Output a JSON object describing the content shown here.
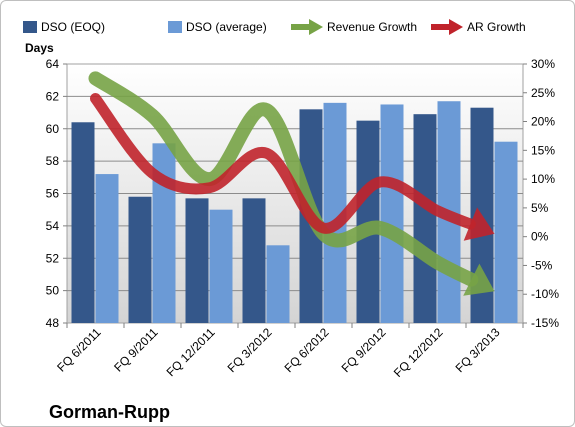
{
  "chart_data": {
    "type": "bar",
    "title": "Gorman-Rupp",
    "ylabel": "Days",
    "categories": [
      "FQ 6/2011",
      "FQ 9/2011",
      "FQ 12/2011",
      "FQ 3/2012",
      "FQ 6/2012",
      "FQ 9/2012",
      "FQ 12/2012",
      "FQ 3/2013"
    ],
    "ylim": [
      48,
      64
    ],
    "yticks": [
      48,
      50,
      52,
      54,
      56,
      58,
      60,
      62,
      64
    ],
    "y2lim": [
      -15,
      30
    ],
    "y2ticks": [
      "-15%",
      "-10%",
      "-5%",
      "0%",
      "5%",
      "10%",
      "15%",
      "20%",
      "25%",
      "30%"
    ],
    "y2tick_values": [
      -15,
      -10,
      -5,
      0,
      5,
      10,
      15,
      20,
      25,
      30
    ],
    "grid": true,
    "legend_position": "top",
    "series": [
      {
        "name": "DSO (EOQ)",
        "type": "bar",
        "axis": "left",
        "color": "#34578a",
        "values": [
          60.4,
          55.8,
          55.7,
          55.7,
          61.2,
          60.5,
          60.9,
          61.3
        ]
      },
      {
        "name": "DSO (average)",
        "type": "bar",
        "axis": "left",
        "color": "#6b9ad6",
        "values": [
          57.2,
          59.1,
          55.0,
          52.8,
          61.6,
          61.5,
          61.7,
          59.2
        ]
      },
      {
        "name": "Revenue Growth",
        "type": "line-arrow",
        "axis": "right",
        "color": "#77a346",
        "values": [
          27.5,
          21.0,
          10.0,
          22.0,
          0.5,
          1.5,
          -4.5,
          -9.5
        ]
      },
      {
        "name": "AR Growth",
        "type": "line-arrow",
        "axis": "right",
        "color": "#c0232b",
        "values": [
          24.0,
          11.0,
          8.5,
          14.5,
          1.5,
          9.5,
          4.5,
          0.5
        ]
      }
    ]
  }
}
